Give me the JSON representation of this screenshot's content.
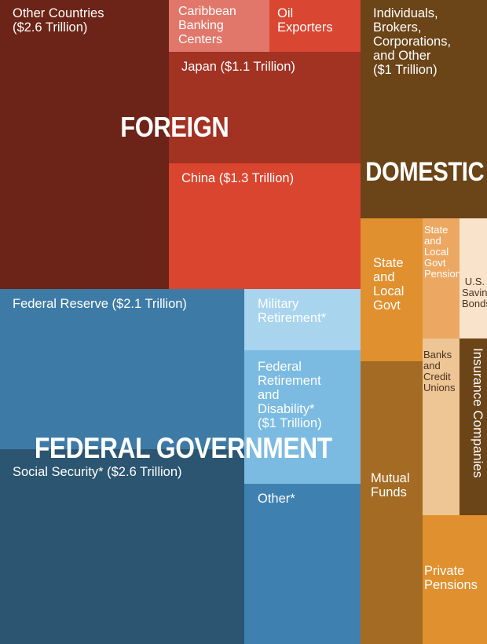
{
  "chart_data": {
    "type": "treemap",
    "groups": [
      {
        "label": "FOREIGN",
        "items": [
          {
            "id": "other_countries",
            "label": "Other Countries\n($2.6 Trillion)",
            "color": "#6b2417"
          },
          {
            "id": "caribbean",
            "label": "Caribbean\nBanking\nCenters",
            "color": "#e0776a"
          },
          {
            "id": "oil",
            "label": "Oil\nExporters",
            "color": "#d94631"
          },
          {
            "id": "japan",
            "label": "Japan ($1.1 Trillion)",
            "color": "#a23222"
          },
          {
            "id": "china",
            "label": "China ($1.3 Trillion)",
            "color": "#d9452e"
          }
        ]
      },
      {
        "label": "DOMESTIC",
        "items": [
          {
            "id": "individuals",
            "label": "Individuals,\nBrokers,\nCorporations,\nand Other\n($1 Trillion)",
            "color": "#6b4418"
          },
          {
            "id": "state_local",
            "label": "State\nand\nLocal\nGovt",
            "color": "#e0902e"
          },
          {
            "id": "state_pensions",
            "label": "State\nand\nLocal\nGovt\nPensions",
            "color": "#eca862"
          },
          {
            "id": "savings_bonds",
            "label": "U.S.\nSavings\nBonds",
            "color": "#f9e3ca"
          },
          {
            "id": "banks",
            "label": "Banks\nand\nCredit\nUnions",
            "color": "#eec594"
          },
          {
            "id": "insurance",
            "label": "Insurance Companies",
            "color": "#6b4418"
          },
          {
            "id": "mutual_funds",
            "label": "Mutual\nFunds",
            "color": "#a46b24"
          },
          {
            "id": "private_pensions",
            "label": "Private\nPensions",
            "color": "#e0902e"
          }
        ]
      },
      {
        "label": "FEDERAL GOVERNMENT",
        "items": [
          {
            "id": "fed_reserve",
            "label": "Federal Reserve ($2.1 Trillion)",
            "color": "#3d7ba6"
          },
          {
            "id": "military",
            "label": "Military\nRetirement*",
            "color": "#a8d4ee"
          },
          {
            "id": "fed_retirement",
            "label": "Federal\nRetirement\nand\nDisability*\n($1 Trillion)",
            "color": "#7bbbe2"
          },
          {
            "id": "social_security",
            "label": "Social Security* ($2.6 Trillion)",
            "color": "#2b5570"
          },
          {
            "id": "other_fed",
            "label": "Other*",
            "color": "#3e81b1"
          }
        ]
      }
    ]
  }
}
